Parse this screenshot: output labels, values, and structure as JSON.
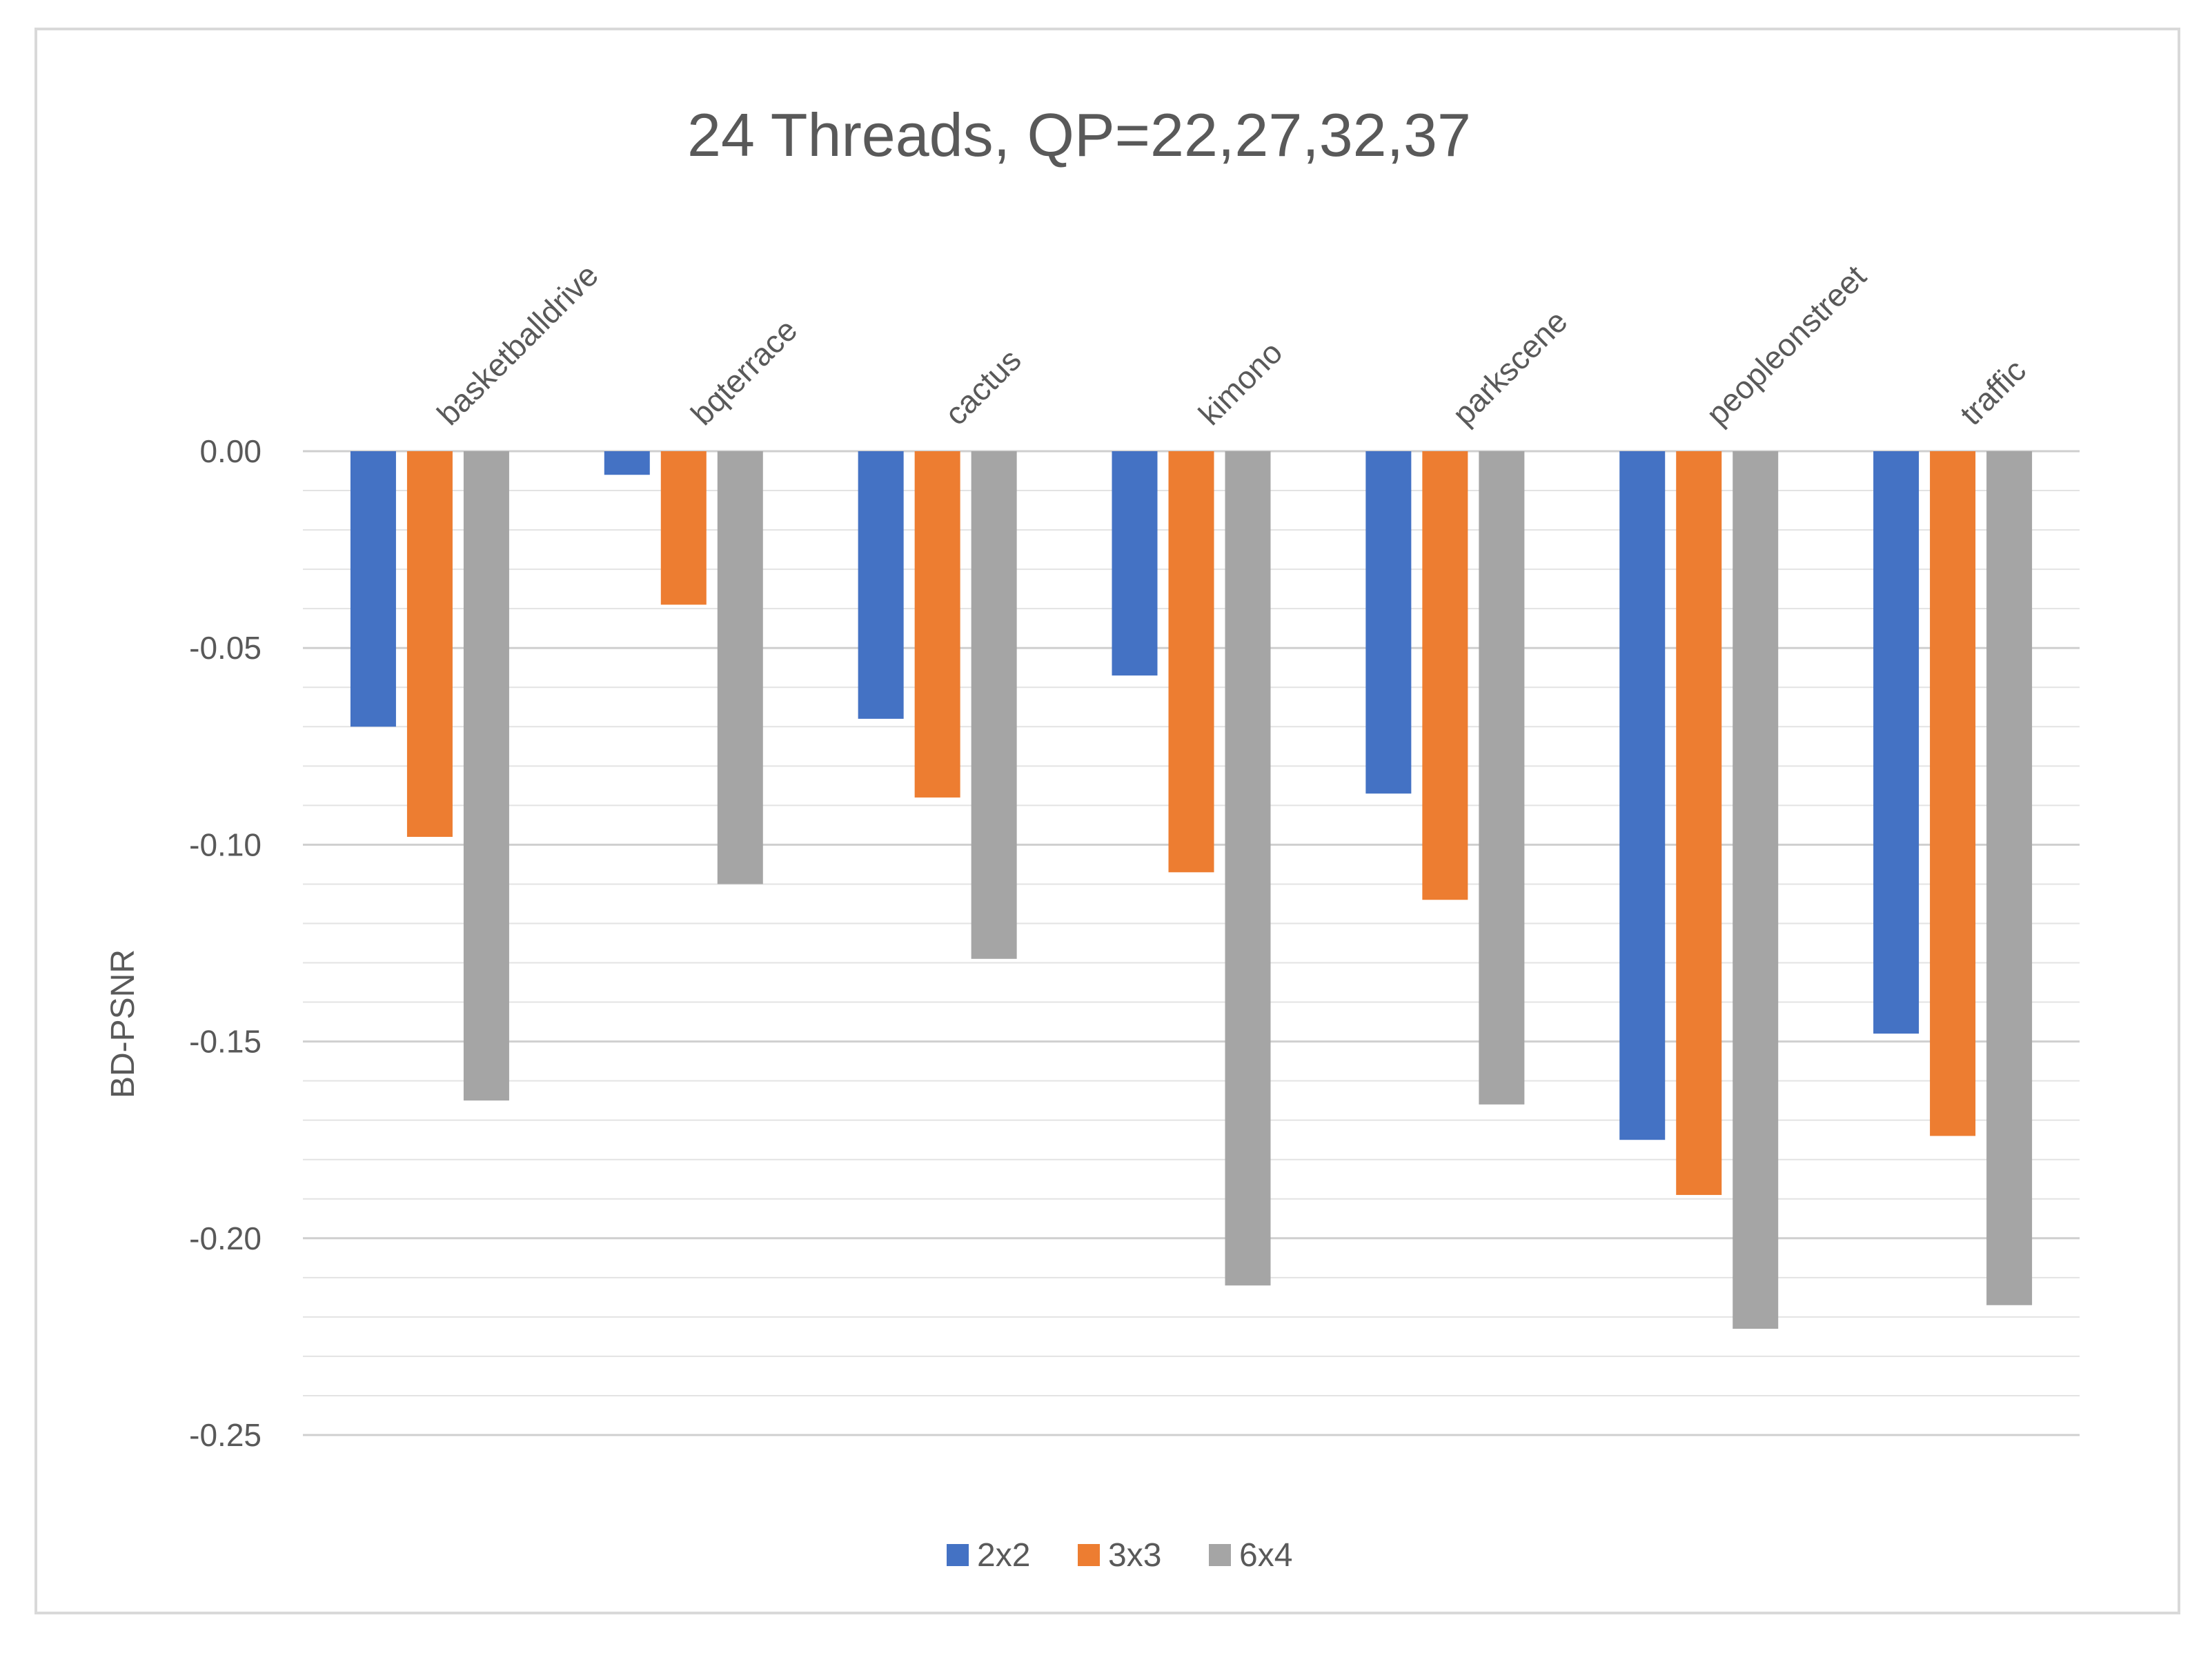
{
  "chart_data": {
    "type": "bar",
    "title": "24 Threads, QP=22,27,32,37",
    "xlabel": "",
    "ylabel": "BD-PSNR",
    "categories": [
      "basketballdrive",
      "bqterrace",
      "cactus",
      "kimono",
      "parkscene",
      "peopleonstreet",
      "traffic"
    ],
    "series": [
      {
        "name": "2x2",
        "color": "#4472c4",
        "values": [
          -0.07,
          -0.006,
          -0.068,
          -0.057,
          -0.087,
          -0.175,
          -0.148
        ]
      },
      {
        "name": "3x3",
        "color": "#ed7d31",
        "values": [
          -0.098,
          -0.039,
          -0.088,
          -0.107,
          -0.114,
          -0.189,
          -0.174
        ]
      },
      {
        "name": "6x4",
        "color": "#a5a5a5",
        "values": [
          -0.165,
          -0.11,
          -0.129,
          -0.212,
          -0.166,
          -0.223,
          -0.217
        ]
      }
    ],
    "ylim": [
      -0.25,
      0.0
    ],
    "yticks": [
      0.0,
      -0.05,
      -0.1,
      -0.15,
      -0.2,
      -0.25
    ],
    "ytick_labels": [
      "0.00",
      "-0.05",
      "-0.10",
      "-0.15",
      "-0.20",
      "-0.25"
    ],
    "minor_grid_step": 0.01,
    "grid": true,
    "legend_position": "bottom-center"
  }
}
